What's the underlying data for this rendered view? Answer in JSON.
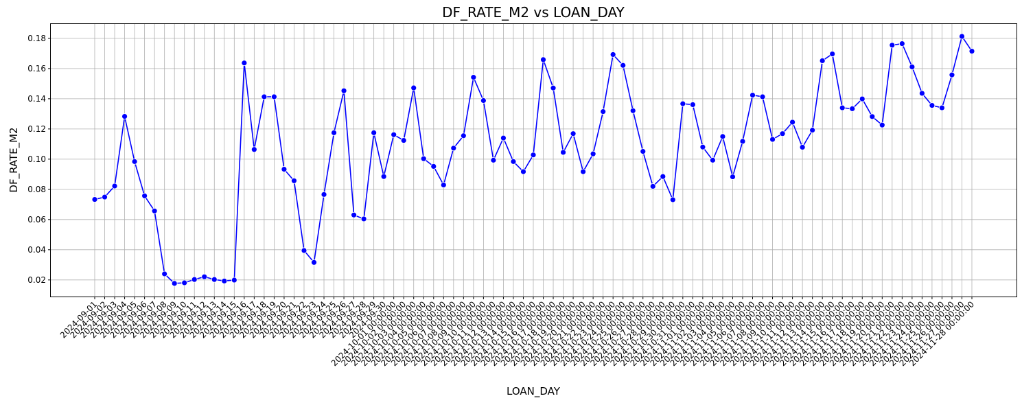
{
  "chart_data": {
    "type": "line",
    "title": "DF_RATE_M2 vs LOAN_DAY",
    "xlabel": "LOAN_DAY",
    "ylabel": "DF_RATE_M2",
    "ylim": [
      0.009,
      0.1895
    ],
    "yticks": [
      0.02,
      0.04,
      0.06,
      0.08,
      0.1,
      0.12,
      0.14,
      0.16,
      0.18
    ],
    "ytick_labels": [
      "0.02",
      "0.04",
      "0.06",
      "0.08",
      "0.10",
      "0.12",
      "0.14",
      "0.16",
      "0.18"
    ],
    "grid": true,
    "line_color": "#0000ff",
    "marker": "circle",
    "x": [
      "2024-09-01",
      "2024-09-02",
      "2024-09-03",
      "2024-09-04",
      "2024-09-05",
      "2024-09-06",
      "2024-09-07",
      "2024-09-08",
      "2024-09-09",
      "2024-09-10",
      "2024-09-11",
      "2024-09-12",
      "2024-09-13",
      "2024-09-14",
      "2024-09-15",
      "2024-09-16",
      "2024-09-17",
      "2024-09-18",
      "2024-09-19",
      "2024-09-20",
      "2024-09-21",
      "2024-09-22",
      "2024-09-23",
      "2024-09-24",
      "2024-09-25",
      "2024-09-26",
      "2024-09-27",
      "2024-09-28",
      "2024-09-29",
      "2024-09-30",
      "2024-10-01 00:00:00",
      "2024-10-02 00:00:00",
      "2024-10-03 00:00:00",
      "2024-10-04 00:00:00",
      "2024-10-05 00:00:00",
      "2024-10-06 00:00:00",
      "2024-10-07 00:00:00",
      "2024-10-08 00:00:00",
      "2024-10-09 00:00:00",
      "2024-10-10 00:00:00",
      "2024-10-11 00:00:00",
      "2024-10-12 00:00:00",
      "2024-10-13 00:00:00",
      "2024-10-14 00:00:00",
      "2024-10-15 00:00:00",
      "2024-10-16 00:00:00",
      "2024-10-17 00:00:00",
      "2024-10-18 00:00:00",
      "2024-10-19 00:00:00",
      "2024-10-20 00:00:00",
      "2024-10-21 00:00:00",
      "2024-10-22 00:00:00",
      "2024-10-23 00:00:00",
      "2024-10-24 00:00:00",
      "2024-10-25 00:00:00",
      "2024-10-26 00:00:00",
      "2024-10-27 00:00:00",
      "2024-10-28 00:00:00",
      "2024-10-29 00:00:00",
      "2024-10-30 00:00:00",
      "2024-10-31 00:00:00",
      "2024-11-01 00:00:00",
      "2024-11-02 00:00:00",
      "2024-11-03 00:00:00",
      "2024-11-04 00:00:00",
      "2024-11-05 00:00:00",
      "2024-11-06 00:00:00",
      "2024-11-07 00:00:00",
      "2024-11-08 00:00:00",
      "2024-11-09 00:00:00",
      "2024-11-10 00:00:00",
      "2024-11-11 00:00:00",
      "2024-11-12 00:00:00",
      "2024-11-13 00:00:00",
      "2024-11-14 00:00:00",
      "2024-11-15 00:00:00",
      "2024-11-16 00:00:00",
      "2024-11-17 00:00:00",
      "2024-11-18 00:00:00",
      "2024-11-19 00:00:00",
      "2024-11-20 00:00:00",
      "2024-11-21 00:00:00",
      "2024-11-22 00:00:00",
      "2024-11-23 00:00:00",
      "2024-11-24 00:00:00",
      "2024-11-25 00:00:00",
      "2024-11-26 00:00:00",
      "2024-11-27 00:00:00",
      "2024-11-28 00:00:00"
    ],
    "values": [
      0.0733,
      0.0749,
      0.0822,
      0.1283,
      0.0984,
      0.0757,
      0.0657,
      0.024,
      0.0177,
      0.0181,
      0.0203,
      0.0221,
      0.0203,
      0.0193,
      0.0199,
      0.1637,
      0.1064,
      0.1413,
      0.1413,
      0.0933,
      0.0857,
      0.0395,
      0.0316,
      0.0766,
      0.1175,
      0.1453,
      0.063,
      0.0604,
      0.1175,
      0.0885,
      0.1162,
      0.1124,
      0.1472,
      0.1003,
      0.0952,
      0.0829,
      0.1073,
      0.1155,
      0.1542,
      0.1388,
      0.0993,
      0.114,
      0.0984,
      0.0917,
      0.1028,
      0.1659,
      0.1471,
      0.1045,
      0.1169,
      0.0917,
      0.1035,
      0.1315,
      0.1693,
      0.1621,
      0.1321,
      0.1051,
      0.082,
      0.0885,
      0.0731,
      0.1367,
      0.1361,
      0.108,
      0.0993,
      0.115,
      0.0883,
      0.1118,
      0.1424,
      0.1413,
      0.1131,
      0.1169,
      0.1245,
      0.1079,
      0.1192,
      0.1652,
      0.1697,
      0.134,
      0.1334,
      0.1399,
      0.1282,
      0.1226,
      0.1755,
      0.1765,
      0.1611,
      0.1436,
      0.1356,
      0.134,
      0.1558,
      0.1813,
      0.1715
    ]
  }
}
